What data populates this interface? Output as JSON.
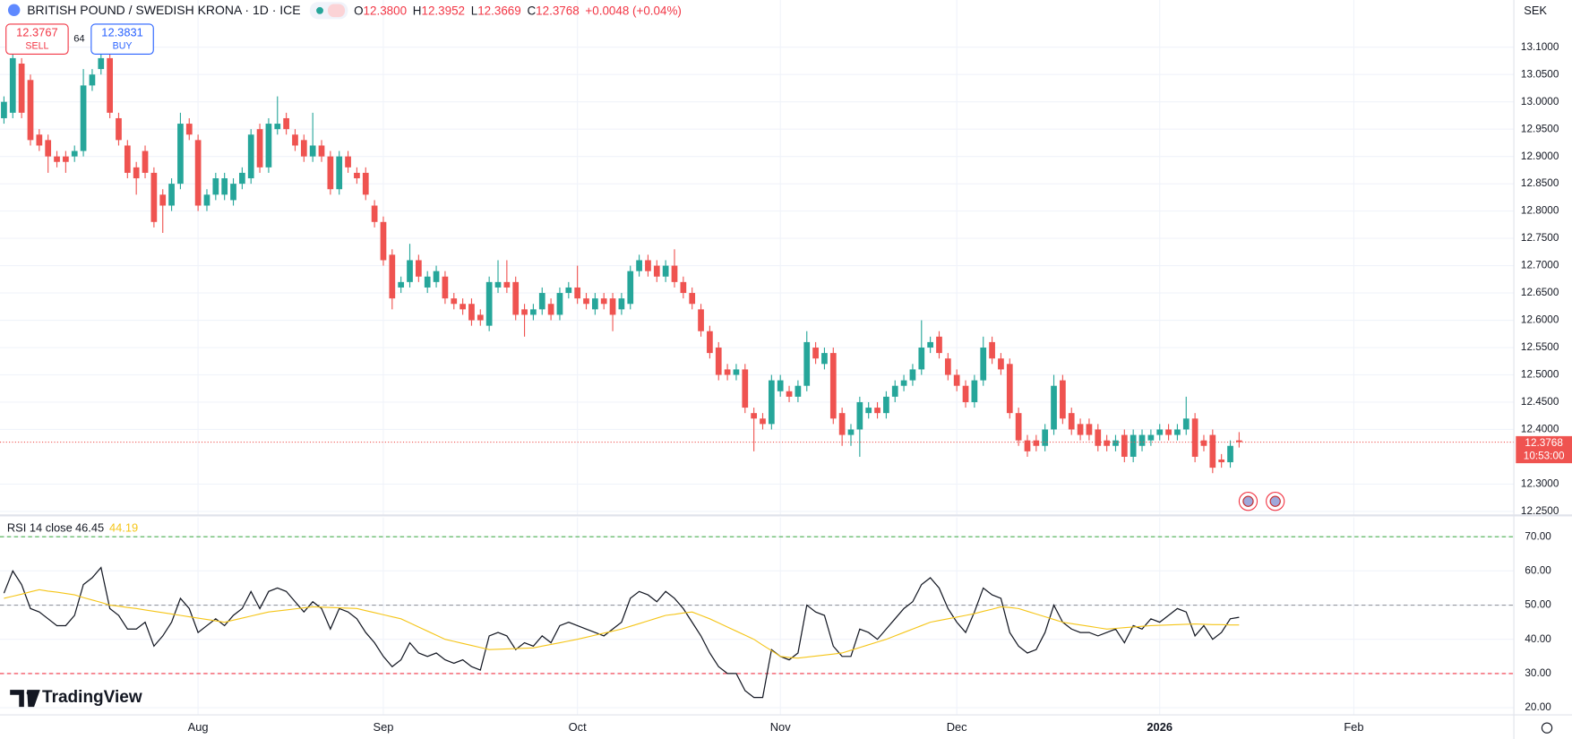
{
  "chart_data": [
    {
      "type": "candlestick",
      "title": "BRITISH POUND / SWEDISH KRONA · 1D · ICE",
      "currency": "SEK",
      "readout": [
        {
          "label": "O",
          "value": "12.3800"
        },
        {
          "label": "H",
          "value": "12.3952"
        },
        {
          "label": "L",
          "value": "12.3669"
        },
        {
          "label": "C",
          "value": "12.3768"
        }
      ],
      "change": "+0.0048 (+0.04%)",
      "sell": {
        "price": "12.3767",
        "label": "SELL"
      },
      "spread": "64",
      "buy": {
        "price": "12.3831",
        "label": "BUY"
      },
      "last_price_label": "12.3768",
      "countdown": "10:53:00",
      "up_color": "#26a69a",
      "down_color": "#ef5350",
      "grid": true,
      "xlim": [
        -0.45,
        171.14
      ],
      "xticks": [
        {
          "value": 22,
          "label": "Aug"
        },
        {
          "value": 43,
          "label": "Sep"
        },
        {
          "value": 65,
          "label": "Oct"
        },
        {
          "value": 88,
          "label": "Nov"
        },
        {
          "value": 108,
          "label": "Dec"
        },
        {
          "value": 131,
          "label": "2026"
        },
        {
          "value": 153,
          "label": "Feb"
        }
      ],
      "ylim": [
        12.2427,
        13.1864
      ],
      "yticks": [
        {
          "value": 13.1,
          "label": "13.1000"
        },
        {
          "value": 13.05,
          "label": "13.0500"
        },
        {
          "value": 13.0,
          "label": "13.0000"
        },
        {
          "value": 12.95,
          "label": "12.9500"
        },
        {
          "value": 12.9,
          "label": "12.9000"
        },
        {
          "value": 12.85,
          "label": "12.8500"
        },
        {
          "value": 12.8,
          "label": "12.8000"
        },
        {
          "value": 12.75,
          "label": "12.7500"
        },
        {
          "value": 12.7,
          "label": "12.7000"
        },
        {
          "value": 12.65,
          "label": "12.6500"
        },
        {
          "value": 12.6,
          "label": "12.6000"
        },
        {
          "value": 12.55,
          "label": "12.5500"
        },
        {
          "value": 12.5,
          "label": "12.5000"
        },
        {
          "value": 12.45,
          "label": "12.4500"
        },
        {
          "value": 12.4,
          "label": "12.4000"
        },
        {
          "value": 12.3,
          "label": "12.3000"
        },
        {
          "value": 12.25,
          "label": "12.2500"
        }
      ],
      "open": [
        12.97,
        12.98,
        13.07,
        13.04,
        12.94,
        12.93,
        12.9,
        12.9,
        12.9,
        12.91,
        13.03,
        13.06,
        13.08,
        12.97,
        12.92,
        12.88,
        12.91,
        12.87,
        12.83,
        12.81,
        12.85,
        12.96,
        12.93,
        12.81,
        12.83,
        12.83,
        12.82,
        12.85,
        12.86,
        12.95,
        12.88,
        12.95,
        12.97,
        12.94,
        12.93,
        12.9,
        12.92,
        12.9,
        12.84,
        12.9,
        12.87,
        12.87,
        12.81,
        12.78,
        12.72,
        12.66,
        12.67,
        12.71,
        12.66,
        12.67,
        12.68,
        12.64,
        12.63,
        12.63,
        12.61,
        12.59,
        12.66,
        12.67,
        12.67,
        12.62,
        12.61,
        12.62,
        12.63,
        12.61,
        12.65,
        12.66,
        12.64,
        12.62,
        12.64,
        12.64,
        12.62,
        12.63,
        12.69,
        12.71,
        12.7,
        12.68,
        12.7,
        12.67,
        12.65,
        12.62,
        12.58,
        12.55,
        12.51,
        12.5,
        12.51,
        12.43,
        12.42,
        12.41,
        12.47,
        12.47,
        12.46,
        12.48,
        12.55,
        12.52,
        12.54,
        12.43,
        12.39,
        12.4,
        12.43,
        12.44,
        12.43,
        12.46,
        12.48,
        12.49,
        12.51,
        12.55,
        12.57,
        12.53,
        12.5,
        12.48,
        12.45,
        12.49,
        12.56,
        12.53,
        12.52,
        12.43,
        12.38,
        12.38,
        12.37,
        12.4,
        12.49,
        12.43,
        12.41,
        12.41,
        12.4,
        12.38,
        12.37,
        12.39,
        12.35,
        12.37,
        12.38,
        12.39,
        12.4,
        12.39,
        12.4,
        12.42,
        12.38,
        12.39,
        12.345,
        12.34,
        12.38
      ],
      "high": [
        13.01,
        13.1,
        13.08,
        13.05,
        12.95,
        12.94,
        12.91,
        12.91,
        12.92,
        13.06,
        13.06,
        13.1,
        13.09,
        12.98,
        12.93,
        12.89,
        12.92,
        12.88,
        12.84,
        12.86,
        12.98,
        12.97,
        12.94,
        12.84,
        12.87,
        12.87,
        12.86,
        12.88,
        12.95,
        12.96,
        12.97,
        13.01,
        12.98,
        12.95,
        12.94,
        12.98,
        12.93,
        12.91,
        12.91,
        12.91,
        12.88,
        12.88,
        12.82,
        12.79,
        12.73,
        12.68,
        12.74,
        12.72,
        12.69,
        12.7,
        12.69,
        12.65,
        12.64,
        12.64,
        12.62,
        12.68,
        12.71,
        12.71,
        12.68,
        12.63,
        12.63,
        12.66,
        12.64,
        12.66,
        12.67,
        12.7,
        12.65,
        12.65,
        12.65,
        12.65,
        12.65,
        12.7,
        12.72,
        12.72,
        12.71,
        12.71,
        12.73,
        12.68,
        12.66,
        12.63,
        12.59,
        12.56,
        12.52,
        12.52,
        12.52,
        12.44,
        12.43,
        12.5,
        12.5,
        12.48,
        12.49,
        12.58,
        12.56,
        12.55,
        12.55,
        12.44,
        12.41,
        12.46,
        12.45,
        12.45,
        12.47,
        12.49,
        12.5,
        12.52,
        12.6,
        12.57,
        12.58,
        12.54,
        12.51,
        12.49,
        12.5,
        12.57,
        12.57,
        12.54,
        12.53,
        12.44,
        12.39,
        12.39,
        12.41,
        12.5,
        12.5,
        12.44,
        12.42,
        12.42,
        12.41,
        12.39,
        12.39,
        12.4,
        12.4,
        12.4,
        12.4,
        12.41,
        12.41,
        12.41,
        12.46,
        12.43,
        12.39,
        12.4,
        12.355,
        12.38,
        12.3952
      ],
      "low": [
        12.96,
        12.97,
        12.97,
        12.92,
        12.91,
        12.87,
        12.88,
        12.87,
        12.89,
        12.9,
        13.02,
        13.05,
        12.97,
        12.92,
        12.86,
        12.83,
        12.86,
        12.77,
        12.76,
        12.8,
        12.84,
        12.93,
        12.8,
        12.8,
        12.82,
        12.82,
        12.81,
        12.84,
        12.85,
        12.87,
        12.87,
        12.94,
        12.94,
        12.91,
        12.89,
        12.89,
        12.89,
        12.83,
        12.83,
        12.87,
        12.85,
        12.82,
        12.77,
        12.7,
        12.62,
        12.65,
        12.66,
        12.67,
        12.65,
        12.66,
        12.63,
        12.62,
        12.61,
        12.59,
        12.59,
        12.58,
        12.65,
        12.65,
        12.6,
        12.57,
        12.6,
        12.61,
        12.6,
        12.6,
        12.64,
        12.63,
        12.62,
        12.61,
        12.62,
        12.58,
        12.61,
        12.62,
        12.68,
        12.68,
        12.67,
        12.67,
        12.66,
        12.64,
        12.62,
        12.57,
        12.53,
        12.49,
        12.49,
        12.49,
        12.43,
        12.36,
        12.4,
        12.4,
        12.46,
        12.45,
        12.45,
        12.47,
        12.52,
        12.51,
        12.41,
        12.37,
        12.37,
        12.35,
        12.42,
        12.42,
        12.42,
        12.45,
        12.47,
        12.48,
        12.5,
        12.54,
        12.53,
        12.49,
        12.47,
        12.44,
        12.44,
        12.48,
        12.52,
        12.5,
        12.42,
        12.37,
        12.35,
        12.36,
        12.36,
        12.39,
        12.41,
        12.39,
        12.38,
        12.38,
        12.36,
        12.36,
        12.36,
        12.34,
        12.34,
        12.36,
        12.37,
        12.38,
        12.38,
        12.38,
        12.39,
        12.34,
        12.36,
        12.32,
        12.33,
        12.33,
        12.3669
      ],
      "close": [
        13.0,
        13.08,
        12.98,
        12.93,
        12.92,
        12.9,
        12.89,
        12.89,
        12.91,
        13.03,
        13.05,
        13.08,
        12.98,
        12.93,
        12.87,
        12.86,
        12.87,
        12.78,
        12.81,
        12.85,
        12.96,
        12.94,
        12.81,
        12.83,
        12.86,
        12.86,
        12.85,
        12.87,
        12.94,
        12.88,
        12.96,
        12.96,
        12.95,
        12.92,
        12.9,
        12.92,
        12.9,
        12.84,
        12.9,
        12.88,
        12.86,
        12.83,
        12.78,
        12.71,
        12.64,
        12.67,
        12.71,
        12.68,
        12.68,
        12.69,
        12.64,
        12.63,
        12.62,
        12.6,
        12.6,
        12.67,
        12.67,
        12.66,
        12.61,
        12.61,
        12.62,
        12.65,
        12.61,
        12.65,
        12.66,
        12.64,
        12.63,
        12.64,
        12.63,
        12.61,
        12.64,
        12.69,
        12.71,
        12.69,
        12.68,
        12.7,
        12.67,
        12.65,
        12.63,
        12.58,
        12.54,
        12.5,
        12.5,
        12.51,
        12.44,
        12.42,
        12.41,
        12.49,
        12.49,
        12.46,
        12.48,
        12.56,
        12.53,
        12.54,
        12.42,
        12.39,
        12.4,
        12.45,
        12.44,
        12.43,
        12.46,
        12.48,
        12.49,
        12.51,
        12.55,
        12.56,
        12.54,
        12.5,
        12.48,
        12.45,
        12.49,
        12.55,
        12.53,
        12.51,
        12.43,
        12.38,
        12.36,
        12.37,
        12.4,
        12.48,
        12.42,
        12.4,
        12.39,
        12.39,
        12.37,
        12.37,
        12.38,
        12.35,
        12.39,
        12.39,
        12.39,
        12.4,
        12.39,
        12.4,
        12.42,
        12.35,
        12.37,
        12.33,
        12.34,
        12.37,
        12.3768
      ]
    },
    {
      "type": "line",
      "title": "RSI 14 close",
      "ylim": [
        17.9,
        75.66
      ],
      "yticks": [
        {
          "value": 70,
          "label": "70.00"
        },
        {
          "value": 60,
          "label": "60.00"
        },
        {
          "value": 50,
          "label": "50.00"
        },
        {
          "value": 40,
          "label": "40.00"
        },
        {
          "value": 30,
          "label": "30.00"
        },
        {
          "value": 20,
          "label": "20.00"
        }
      ],
      "levels": [
        {
          "value": 70,
          "color": "#4caf50"
        },
        {
          "value": 50,
          "color": "#9598a1"
        },
        {
          "value": 30,
          "color": "#f23645"
        }
      ],
      "series": [
        {
          "name": "RSI",
          "color": "#131722",
          "last_value_label": "46.45",
          "values": [
            53.5,
            60,
            56,
            49,
            48,
            46,
            44,
            44,
            47,
            56,
            58,
            61,
            49,
            47,
            43,
            43,
            45,
            38,
            41,
            45,
            52,
            49,
            42,
            44,
            46,
            44,
            47,
            49,
            54,
            49,
            54,
            55,
            54,
            51,
            48,
            51,
            49,
            43,
            49,
            48,
            46,
            42,
            39,
            35,
            32,
            34,
            39,
            36,
            35,
            36,
            34,
            33,
            34,
            32,
            31,
            41,
            42,
            41,
            37,
            39,
            38,
            41,
            39,
            44,
            45,
            44,
            43,
            42,
            41,
            43,
            45,
            52,
            54,
            53,
            51,
            54,
            52,
            49,
            45,
            41,
            36,
            32,
            30,
            30,
            25,
            23,
            23,
            37,
            35,
            34,
            36,
            50,
            48,
            47,
            38,
            35,
            35,
            43,
            42,
            40,
            43,
            46,
            49,
            51,
            56,
            58,
            55,
            49,
            45,
            42,
            48,
            55,
            53,
            52,
            42,
            38,
            36,
            37,
            42,
            50,
            45,
            43,
            42,
            42,
            41,
            42,
            43,
            39,
            44,
            43,
            46,
            45,
            47,
            49,
            48,
            41,
            44,
            40,
            42,
            46,
            46.45
          ]
        },
        {
          "name": "RSI-based MA",
          "color": "#f5c518",
          "last_value_label": "44.19",
          "values": [
            52,
            52.6,
            53.2,
            53.9,
            54.5,
            54.1,
            53.8,
            53.4,
            53,
            52.2,
            51.5,
            50.8,
            50,
            49.7,
            49.3,
            49,
            48.6,
            48.2,
            47.8,
            47.4,
            47,
            46.6,
            46.2,
            45.8,
            45.4,
            45,
            45.6,
            46.2,
            46.8,
            47.4,
            48,
            48.3,
            48.6,
            48.9,
            49.2,
            49.5,
            49.4,
            49.3,
            49.2,
            49.1,
            49,
            48.4,
            47.8,
            47.2,
            46.6,
            46,
            44.8,
            43.6,
            42.4,
            41.2,
            40,
            39.4,
            38.8,
            38.2,
            37.6,
            37,
            37.1,
            37.2,
            37.3,
            37.4,
            37.5,
            38,
            38.5,
            39,
            39.5,
            40,
            40.6,
            41.2,
            41.8,
            42.4,
            43,
            43.8,
            44.6,
            45.4,
            46.2,
            47,
            47.3,
            47.7,
            48,
            47,
            46,
            44.8,
            43.6,
            42.4,
            41.2,
            40,
            38.3,
            36.7,
            35,
            34.7,
            34.5,
            34.8,
            35.1,
            35.4,
            35.7,
            36,
            36.8,
            37.6,
            38.4,
            39.2,
            40,
            41,
            42,
            43,
            44,
            45,
            45.5,
            46,
            46.5,
            47,
            47.5,
            48.2,
            48.8,
            49.5,
            49.3,
            49,
            48.2,
            47.4,
            46.6,
            45.8,
            45,
            44.6,
            44.2,
            43.8,
            43.4,
            43,
            43.2,
            43.4,
            43.6,
            43.8,
            44,
            44.1,
            44.2,
            44.3,
            44.4,
            44.5,
            44.4,
            44.3,
            44.3,
            44.2,
            44.19
          ]
        }
      ]
    }
  ],
  "brand": "TradingView"
}
